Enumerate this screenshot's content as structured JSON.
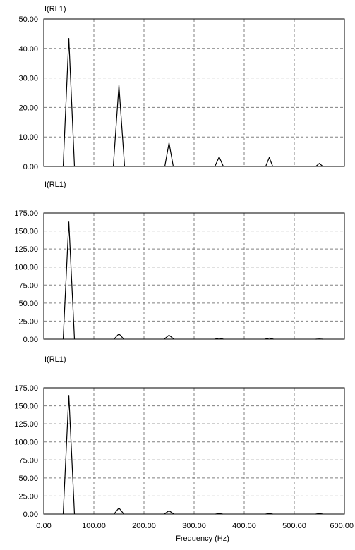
{
  "chart_data": [
    {
      "type": "line",
      "title": "I(RL1)",
      "xlabel": "",
      "ylabel": "",
      "xlim": [
        0,
        600
      ],
      "ylim": [
        0,
        50
      ],
      "grid": true,
      "x_ticks": [
        "0.00",
        "100.00",
        "200.00",
        "300.00",
        "400.00",
        "500.00",
        "600.00"
      ],
      "y_ticks": [
        "0.00",
        "10.00",
        "20.00",
        "30.00",
        "40.00",
        "50.00"
      ],
      "series": [
        {
          "values": [
            {
              "x": 50,
              "y": 43.5,
              "w": 16
            },
            {
              "x": 150,
              "y": 27.5,
              "w": 16
            },
            {
              "x": 250,
              "y": 8.0,
              "w": 12
            },
            {
              "x": 350,
              "y": 3.2,
              "w": 12
            },
            {
              "x": 450,
              "y": 3.0,
              "w": 10
            },
            {
              "x": 550,
              "y": 1.0,
              "w": 10
            }
          ]
        }
      ]
    },
    {
      "type": "line",
      "title": "I(RL1)",
      "xlabel": "",
      "ylabel": "",
      "xlim": [
        0,
        600
      ],
      "ylim": [
        0,
        175
      ],
      "grid": true,
      "x_ticks": [
        "0.00",
        "100.00",
        "200.00",
        "300.00",
        "400.00",
        "500.00",
        "600.00"
      ],
      "y_ticks": [
        "0.00",
        "25.00",
        "50.00",
        "75.00",
        "100.00",
        "125.00",
        "150.00",
        "175.00"
      ],
      "series": [
        {
          "values": [
            {
              "x": 50,
              "y": 163,
              "w": 16
            },
            {
              "x": 150,
              "y": 7.5,
              "w": 14
            },
            {
              "x": 250,
              "y": 5.5,
              "w": 14
            },
            {
              "x": 350,
              "y": 1.5,
              "w": 12
            },
            {
              "x": 450,
              "y": 1.5,
              "w": 12
            },
            {
              "x": 550,
              "y": 0.3,
              "w": 10
            }
          ]
        }
      ]
    },
    {
      "type": "line",
      "title": "I(RL1)",
      "xlabel": "Frequency (Hz)",
      "ylabel": "",
      "xlim": [
        0,
        600
      ],
      "ylim": [
        0,
        175
      ],
      "grid": true,
      "x_ticks": [
        "0.00",
        "100.00",
        "200.00",
        "300.00",
        "400.00",
        "500.00",
        "600.00"
      ],
      "y_ticks": [
        "0.00",
        "25.00",
        "50.00",
        "75.00",
        "100.00",
        "125.00",
        "150.00",
        "175.00"
      ],
      "series": [
        {
          "values": [
            {
              "x": 50,
              "y": 165,
              "w": 16
            },
            {
              "x": 150,
              "y": 8.5,
              "w": 14
            },
            {
              "x": 250,
              "y": 4.5,
              "w": 14
            },
            {
              "x": 350,
              "y": 0.8,
              "w": 10
            },
            {
              "x": 450,
              "y": 0.8,
              "w": 10
            },
            {
              "x": 550,
              "y": 0.8,
              "w": 10
            }
          ]
        }
      ]
    }
  ]
}
